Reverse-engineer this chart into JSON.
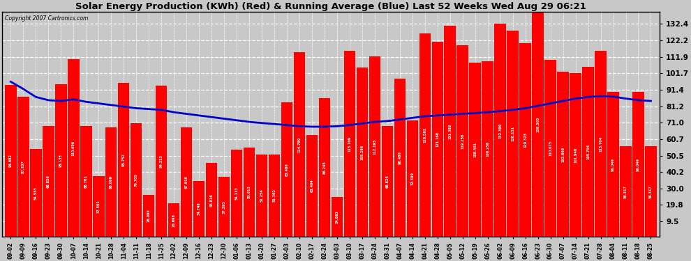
{
  "title": "Solar Energy Production (KWh) (Red) & Running Average (Blue) Last 52 Weeks Wed Aug 29 06:21",
  "copyright": "Copyright 2007 Cartronics.com",
  "bar_color": "#FF0000",
  "line_color": "#0000CC",
  "background_color": "#C8C8C8",
  "yticks": [
    9.5,
    19.8,
    30.0,
    40.2,
    50.5,
    60.7,
    71.0,
    81.2,
    91.4,
    101.7,
    111.9,
    122.2,
    132.4
  ],
  "ylim_max": 140,
  "categories": [
    "09-02",
    "09-09",
    "09-16",
    "09-23",
    "09-30",
    "10-07",
    "10-14",
    "10-21",
    "10-28",
    "11-04",
    "11-11",
    "11-18",
    "11-25",
    "12-02",
    "12-09",
    "12-16",
    "12-23",
    "12-30",
    "01-06",
    "01-13",
    "01-20",
    "01-27",
    "02-03",
    "02-10",
    "02-17",
    "02-24",
    "03-03",
    "03-10",
    "03-17",
    "03-24",
    "03-31",
    "04-07",
    "04-14",
    "04-21",
    "04-28",
    "05-05",
    "05-12",
    "05-19",
    "05-26",
    "06-02",
    "06-09",
    "06-16",
    "06-23",
    "06-30",
    "07-07",
    "07-14",
    "07-21",
    "07-28",
    "08-04",
    "08-11",
    "08-18",
    "08-25"
  ],
  "bar_values": [
    94.682,
    87.207,
    54.533,
    68.856,
    95.135,
    110.606,
    68.781,
    37.591,
    68.099,
    95.752,
    70.705,
    26.086,
    94.213,
    20.698,
    67.916,
    34.748,
    45.816,
    37.293,
    54.113,
    55.613,
    51.254,
    51.392,
    83.486,
    114.799,
    63.404,
    86.245,
    24.863,
    115.709,
    105.286,
    112.193,
    68.825,
    98.486,
    72.399,
    126.592,
    121.168,
    131.388,
    119.258,
    108.401,
    109.258,
    132.399,
    128.151,
    120.323,
    139.505,
    110.075,
    102.669,
    101.946,
    105.704,
    115.704,
    90.049,
    56.317,
    90.049,
    56.317
  ],
  "avg_values": [
    96.5,
    92.0,
    87.0,
    85.0,
    84.5,
    85.5,
    84.0,
    83.0,
    82.0,
    81.0,
    80.0,
    79.5,
    79.0,
    77.5,
    76.5,
    75.5,
    74.5,
    73.5,
    72.5,
    71.5,
    70.8,
    70.2,
    69.5,
    68.8,
    68.5,
    68.5,
    68.8,
    69.5,
    70.5,
    71.5,
    72.0,
    73.0,
    74.0,
    75.0,
    75.5,
    76.0,
    76.5,
    77.0,
    77.5,
    78.2,
    79.0,
    80.0,
    81.5,
    83.0,
    84.5,
    86.0,
    87.0,
    87.5,
    87.2,
    86.0,
    85.0,
    84.5
  ]
}
